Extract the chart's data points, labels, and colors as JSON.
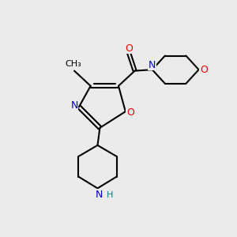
{
  "background_color": "#ebebeb",
  "bond_color": "#000000",
  "n_color": "#0000cc",
  "o_color": "#ee0000",
  "h_color": "#008080",
  "figsize": [
    3.0,
    3.0
  ],
  "dpi": 100,
  "xlim": [
    0,
    10
  ],
  "ylim": [
    0,
    10
  ]
}
